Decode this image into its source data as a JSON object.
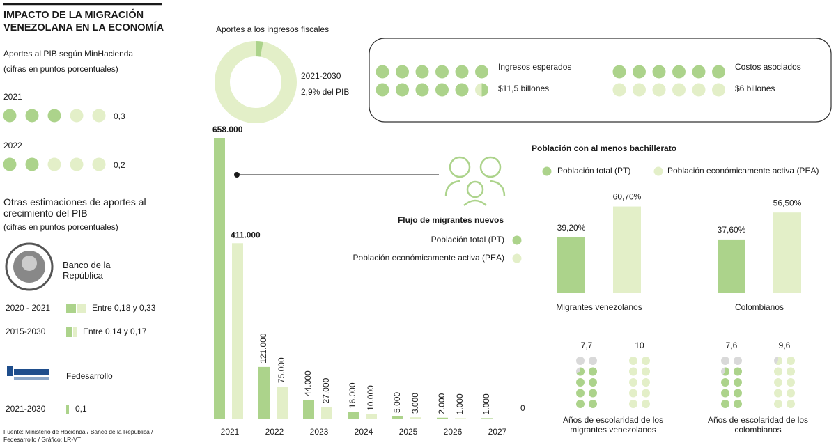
{
  "title": "IMPACTO DE LA MIGRACIÓN VENEZOLANA EN LA ECONOMÍA",
  "minhacienda": {
    "title": "Aportes al PIB según MinHacienda",
    "subtitle": "(cifras en puntos porcentuales)",
    "rows": [
      {
        "year": "2021",
        "value": 0.3,
        "value_label": "0,3"
      },
      {
        "year": "2022",
        "value": 0.2,
        "value_label": "0,2"
      }
    ]
  },
  "otras": {
    "title": "Otras estimaciones de aportes al crecimiento del PIB",
    "subtitle": "(cifras en puntos porcentuales)",
    "sources": [
      {
        "name": "Banco de la República",
        "rows": [
          {
            "period": "2020 - 2021",
            "label": "Entre 0,18 y 0,33"
          },
          {
            "period": "2015-2030",
            "label": "Entre 0,14 y 0,17"
          }
        ]
      },
      {
        "name": "Fedesarrollo",
        "rows": [
          {
            "period": "2021-2030",
            "label": "0,1"
          }
        ]
      }
    ]
  },
  "fiscal": {
    "title": "Aportes a los ingresos fiscales",
    "period": "2021-2030",
    "share": 2.9,
    "share_label": "2,9% del PIB",
    "items": [
      {
        "name": "Ingresos esperados",
        "value": 11.5,
        "value_label": "$11,5 billones"
      },
      {
        "name": "Costos asociados",
        "value": 6,
        "value_label": "$6 billones"
      }
    ]
  },
  "chart_data": [
    {
      "type": "bar",
      "title": "Flujo de migrantes nuevos",
      "categories": [
        "2021",
        "2022",
        "2023",
        "2024",
        "2025",
        "2026",
        "2027"
      ],
      "series": [
        {
          "name": "Población total (PT)",
          "color": "#acd38b",
          "values": [
            658000,
            121000,
            44000,
            16000,
            5000,
            2000,
            1000
          ],
          "value_labels": [
            "658.000",
            "121.000",
            "44.000",
            "16.000",
            "5.000",
            "2.000",
            "1.000"
          ]
        },
        {
          "name": "Población económicamente activa (PEA)",
          "color": "#e3efc8",
          "values": [
            411000,
            75000,
            27000,
            10000,
            3000,
            1000,
            0
          ],
          "value_labels": [
            "411.000",
            "75.000",
            "27.000",
            "10.000",
            "3.000",
            "1.000",
            "0"
          ]
        }
      ]
    },
    {
      "type": "bar",
      "title": "Población con al menos bachillerato",
      "categories": [
        "Migrantes venezolanos",
        "Colombianos"
      ],
      "series": [
        {
          "name": "Población total (PT)",
          "color": "#acd38b",
          "values": [
            39.2,
            37.6
          ],
          "value_labels": [
            "39,20%",
            "37,60%"
          ]
        },
        {
          "name": "Población económicamente activa (PEA)",
          "color": "#e3efc8",
          "values": [
            60.7,
            56.5
          ],
          "value_labels": [
            "60,70%",
            "56,50%"
          ]
        }
      ]
    },
    {
      "type": "dots",
      "categories": [
        "Años de escolaridad de los migrantes venezolanos",
        "Años de escolaridad de los colombianos"
      ],
      "empty_color": "#d9d9d9",
      "series": [
        {
          "color": "#acd38b",
          "values": [
            7.7,
            7.6
          ],
          "value_labels": [
            "7,7",
            "7,6"
          ]
        },
        {
          "color": "#e3efc8",
          "values": [
            10,
            9.6
          ],
          "value_labels": [
            "10",
            "9,6"
          ]
        }
      ]
    }
  ],
  "source": "Fuente: Ministerio de Hacienda / Banco de la República / Fedesarrollo / Gráfico: LR-VT"
}
